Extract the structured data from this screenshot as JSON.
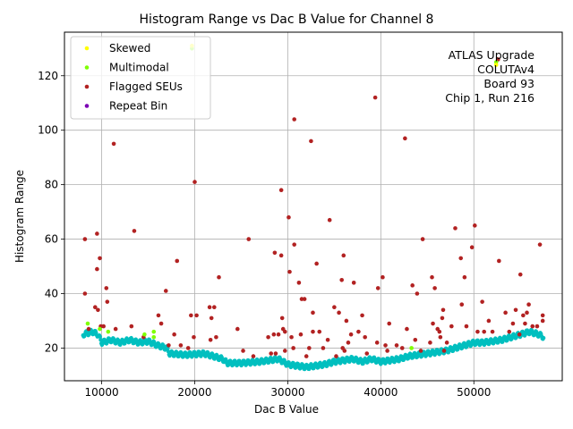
{
  "chart_data": {
    "type": "scatter",
    "title": "Histogram Range vs Dac B Value for Channel 8",
    "xlabel": "Dac B Value",
    "ylabel": "Histogram Range",
    "xlim": [
      6000,
      59500
    ],
    "ylim": [
      8,
      136
    ],
    "xticks": [
      10000,
      20000,
      30000,
      40000,
      50000
    ],
    "yticks": [
      20,
      40,
      60,
      80,
      100,
      120
    ],
    "grid": true,
    "legend_position": "upper-left",
    "annotation": [
      "ATLAS Upgrade",
      "COLUTAv4",
      "Board 93",
      "Chip 1, Run 216"
    ],
    "series": [
      {
        "name": "Skewed",
        "color": "#ffff00",
        "points": [
          [
            19700,
            131
          ],
          [
            52400,
            124
          ]
        ]
      },
      {
        "name": "Multimodal",
        "color": "#7fff00",
        "points": [
          [
            8500,
            29
          ],
          [
            9800,
            27
          ],
          [
            10700,
            26
          ],
          [
            14600,
            25
          ],
          [
            15600,
            26
          ],
          [
            15600,
            24
          ],
          [
            19700,
            130
          ],
          [
            43300,
            20
          ],
          [
            52400,
            125
          ]
        ]
      },
      {
        "name": "Flagged SEUs",
        "color": "#b22222",
        "points": [
          [
            8200,
            60
          ],
          [
            8200,
            40
          ],
          [
            8600,
            27
          ],
          [
            9300,
            35
          ],
          [
            9500,
            49
          ],
          [
            9500,
            62
          ],
          [
            9600,
            34
          ],
          [
            9800,
            53
          ],
          [
            9900,
            28
          ],
          [
            10200,
            28
          ],
          [
            10500,
            42
          ],
          [
            10600,
            37
          ],
          [
            11300,
            95
          ],
          [
            11500,
            27
          ],
          [
            13200,
            28
          ],
          [
            13500,
            63
          ],
          [
            14500,
            24
          ],
          [
            16100,
            32
          ],
          [
            16400,
            29
          ],
          [
            16900,
            41
          ],
          [
            17200,
            21
          ],
          [
            17800,
            25
          ],
          [
            18100,
            52
          ],
          [
            18500,
            21
          ],
          [
            19300,
            20
          ],
          [
            19600,
            32
          ],
          [
            19900,
            24
          ],
          [
            20000,
            81
          ],
          [
            20200,
            32
          ],
          [
            21600,
            35
          ],
          [
            21700,
            23
          ],
          [
            21800,
            31
          ],
          [
            22100,
            35
          ],
          [
            22300,
            24
          ],
          [
            22600,
            46
          ],
          [
            24600,
            27
          ],
          [
            25200,
            19
          ],
          [
            25800,
            60
          ],
          [
            26300,
            17
          ],
          [
            27900,
            24
          ],
          [
            28200,
            18
          ],
          [
            28500,
            25
          ],
          [
            28600,
            55
          ],
          [
            28700,
            18
          ],
          [
            29000,
            25
          ],
          [
            29300,
            54
          ],
          [
            29300,
            78
          ],
          [
            29400,
            31
          ],
          [
            29500,
            27
          ],
          [
            29700,
            26
          ],
          [
            29700,
            19
          ],
          [
            30100,
            68
          ],
          [
            30200,
            48
          ],
          [
            30400,
            24
          ],
          [
            30600,
            20
          ],
          [
            30700,
            104
          ],
          [
            30700,
            58
          ],
          [
            31200,
            44
          ],
          [
            31400,
            25
          ],
          [
            31500,
            38
          ],
          [
            31800,
            38
          ],
          [
            32000,
            17
          ],
          [
            32300,
            20
          ],
          [
            32500,
            96
          ],
          [
            32700,
            33
          ],
          [
            32700,
            26
          ],
          [
            33100,
            51
          ],
          [
            33400,
            26
          ],
          [
            33800,
            20
          ],
          [
            34300,
            23
          ],
          [
            34500,
            67
          ],
          [
            35000,
            35
          ],
          [
            35200,
            17
          ],
          [
            35500,
            33
          ],
          [
            35800,
            45
          ],
          [
            35900,
            20
          ],
          [
            36000,
            54
          ],
          [
            36100,
            19
          ],
          [
            36300,
            30
          ],
          [
            36500,
            22
          ],
          [
            36800,
            25
          ],
          [
            37100,
            44
          ],
          [
            37600,
            26
          ],
          [
            38000,
            32
          ],
          [
            38300,
            24
          ],
          [
            38500,
            18
          ],
          [
            39400,
            112
          ],
          [
            39600,
            22
          ],
          [
            39700,
            42
          ],
          [
            40200,
            46
          ],
          [
            40500,
            21
          ],
          [
            40700,
            19
          ],
          [
            40900,
            29
          ],
          [
            41700,
            21
          ],
          [
            42300,
            20
          ],
          [
            42600,
            97
          ],
          [
            42800,
            27
          ],
          [
            43400,
            43
          ],
          [
            43700,
            23
          ],
          [
            43900,
            40
          ],
          [
            44300,
            19
          ],
          [
            44500,
            60
          ],
          [
            45300,
            22
          ],
          [
            45500,
            46
          ],
          [
            45600,
            29
          ],
          [
            45800,
            42
          ],
          [
            46100,
            27
          ],
          [
            46300,
            26
          ],
          [
            46400,
            24
          ],
          [
            46600,
            31
          ],
          [
            46700,
            34
          ],
          [
            46800,
            19
          ],
          [
            47100,
            22
          ],
          [
            47600,
            28
          ],
          [
            48000,
            64
          ],
          [
            48600,
            53
          ],
          [
            48700,
            36
          ],
          [
            49000,
            46
          ],
          [
            49200,
            28
          ],
          [
            49800,
            57
          ],
          [
            50100,
            65
          ],
          [
            50400,
            26
          ],
          [
            50900,
            37
          ],
          [
            51100,
            26
          ],
          [
            51600,
            30
          ],
          [
            52000,
            26
          ],
          [
            52600,
            126
          ],
          [
            52700,
            52
          ],
          [
            53400,
            33
          ],
          [
            53800,
            26
          ],
          [
            54200,
            29
          ],
          [
            54500,
            34
          ],
          [
            54900,
            25
          ],
          [
            55000,
            47
          ],
          [
            55300,
            32
          ],
          [
            55500,
            29
          ],
          [
            55700,
            33
          ],
          [
            55900,
            36
          ],
          [
            56300,
            28
          ],
          [
            56800,
            28
          ],
          [
            57100,
            58
          ],
          [
            57400,
            32
          ],
          [
            57400,
            30
          ]
        ]
      },
      {
        "name": "Repeat Bin",
        "color": "#7b00b4",
        "points": []
      }
    ],
    "baseline": {
      "color": "#00bfbf",
      "points": [
        [
          8000,
          25
        ],
        [
          9000,
          26
        ],
        [
          9600,
          25
        ],
        [
          10000,
          22
        ],
        [
          11000,
          23
        ],
        [
          12000,
          22
        ],
        [
          13000,
          23
        ],
        [
          14000,
          22
        ],
        [
          15000,
          22.5
        ],
        [
          16000,
          21
        ],
        [
          17000,
          20
        ],
        [
          17300,
          18
        ],
        [
          19000,
          17.5
        ],
        [
          21000,
          18
        ],
        [
          22000,
          17
        ],
        [
          23000,
          16
        ],
        [
          23500,
          14.5
        ],
        [
          25000,
          14.5
        ],
        [
          27000,
          15
        ],
        [
          28000,
          15.5
        ],
        [
          29000,
          16
        ],
        [
          30000,
          14
        ],
        [
          31000,
          13.5
        ],
        [
          32000,
          13
        ],
        [
          33000,
          13.5
        ],
        [
          34000,
          14
        ],
        [
          35000,
          15
        ],
        [
          36000,
          15.5
        ],
        [
          37000,
          16
        ],
        [
          38000,
          15
        ],
        [
          39000,
          16
        ],
        [
          40000,
          15
        ],
        [
          41000,
          15.5
        ],
        [
          42000,
          16
        ],
        [
          43000,
          17
        ],
        [
          44000,
          17.5
        ],
        [
          45000,
          18
        ],
        [
          46000,
          18.5
        ],
        [
          47000,
          19
        ],
        [
          48000,
          20
        ],
        [
          49000,
          21
        ],
        [
          50000,
          22
        ],
        [
          51000,
          22
        ],
        [
          52000,
          22.5
        ],
        [
          53000,
          23
        ],
        [
          54000,
          24
        ],
        [
          55000,
          25
        ],
        [
          56000,
          26
        ],
        [
          57000,
          25
        ],
        [
          57500,
          24
        ]
      ]
    }
  }
}
